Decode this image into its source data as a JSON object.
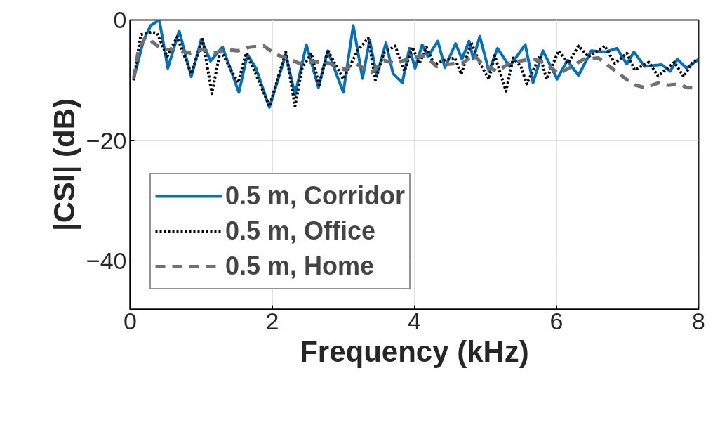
{
  "chart_data": {
    "type": "line",
    "xlabel": "Frequency (kHz)",
    "ylabel": "|CSI| (dB)",
    "xlim": [
      0,
      8
    ],
    "xticks": [
      0,
      2,
      4,
      6,
      8
    ],
    "ylim": [
      -48,
      0
    ],
    "yticks": [
      -40,
      -20,
      0
    ],
    "grid": true,
    "legend": "bottom left",
    "series": [
      {
        "name": "0.5 m, Corridor",
        "color": "#0072bd",
        "line_style": "solid",
        "x": [
          0.05,
          0.19,
          0.29,
          0.41,
          0.53,
          0.69,
          0.86,
          1.0,
          1.13,
          1.3,
          1.53,
          1.65,
          1.77,
          1.96,
          2.19,
          2.32,
          2.48,
          2.65,
          2.78,
          3.0,
          3.14,
          3.27,
          3.37,
          3.47,
          3.6,
          3.7,
          3.83,
          3.93,
          4.01,
          4.11,
          4.19,
          4.33,
          4.43,
          4.58,
          4.67,
          4.77,
          4.83,
          4.92,
          5.05,
          5.17,
          5.34,
          5.56,
          5.67,
          5.81,
          6.01,
          6.15,
          6.31,
          6.49,
          6.69,
          6.85,
          6.99,
          7.09,
          7.24,
          7.48,
          7.6,
          7.7,
          7.83,
          8.0
        ],
        "values": [
          -9.7,
          -3.3,
          -0.9,
          0,
          -8,
          -1.8,
          -9.4,
          -3.2,
          -6.8,
          -4.5,
          -12,
          -5.7,
          -8,
          -14.5,
          -5.7,
          -12.4,
          -4.1,
          -11.2,
          -5.1,
          -12,
          -0.9,
          -9.7,
          -3.3,
          -9.2,
          -3.8,
          -8.9,
          -10.4,
          -4.7,
          -8,
          -4.1,
          -6.1,
          -3.5,
          -7.9,
          -3.9,
          -6.5,
          -3.5,
          -6.5,
          -2.7,
          -8.5,
          -4.7,
          -7.7,
          -4.1,
          -10.4,
          -5.1,
          -9.8,
          -6.7,
          -9.2,
          -5.1,
          -5.3,
          -4.7,
          -7.3,
          -5.3,
          -7.7,
          -7.4,
          -8.5,
          -6.5,
          -8,
          -6.5
        ]
      },
      {
        "name": "0.5 m, Office",
        "color": "#000000",
        "line_style": "dotted",
        "x": [
          0.05,
          0.15,
          0.3,
          0.38,
          0.52,
          0.66,
          0.86,
          1.02,
          1.15,
          1.27,
          1.52,
          1.63,
          1.77,
          1.96,
          2.19,
          2.32,
          2.42,
          2.55,
          2.66,
          2.78,
          3.0,
          3.2,
          3.35,
          3.45,
          3.57,
          3.73,
          3.86,
          3.97,
          4.07,
          4.17,
          4.28,
          4.41,
          4.57,
          4.66,
          4.8,
          4.92,
          5.05,
          5.13,
          5.29,
          5.39,
          5.5,
          5.58,
          5.77,
          5.86,
          6.03,
          6.16,
          6.31,
          6.45,
          6.68,
          6.82,
          6.99,
          7.1,
          7.3,
          7.43,
          7.56,
          7.66,
          7.79,
          7.92,
          8.0
        ],
        "values": [
          -10,
          -2.4,
          -2,
          -2.2,
          -6.1,
          -2.8,
          -8.9,
          -3.2,
          -12.2,
          -5,
          -10.4,
          -5.5,
          -9,
          -14.3,
          -5.3,
          -14.3,
          -8,
          -5.5,
          -10.8,
          -5,
          -9.8,
          -5.1,
          -3,
          -10,
          -5.5,
          -4.3,
          -8.5,
          -4.5,
          -7.2,
          -4.5,
          -7.4,
          -6.7,
          -6.3,
          -9,
          -3.7,
          -7.2,
          -9.8,
          -5.9,
          -11.8,
          -6.3,
          -7.7,
          -10.6,
          -5.9,
          -9.8,
          -5.1,
          -7.2,
          -4.3,
          -6.1,
          -4.3,
          -7.2,
          -5.5,
          -8.3,
          -7,
          -9.3,
          -8,
          -7,
          -9.4,
          -6.9,
          -6.5
        ]
      },
      {
        "name": "0.5 m, Home",
        "color": "#707070",
        "line_style": "dashed",
        "x": [
          0.05,
          0.12,
          0.22,
          0.32,
          0.45,
          0.65,
          0.85,
          1.02,
          1.18,
          1.35,
          1.51,
          1.68,
          1.88,
          2.05,
          2.25,
          2.38,
          2.58,
          2.78,
          3.01,
          3.17,
          3.4,
          3.57,
          3.73,
          4.0,
          4.15,
          4.31,
          4.49,
          4.69,
          4.83,
          4.97,
          5.17,
          5.34,
          5.53,
          5.69,
          5.86,
          6.03,
          6.22,
          6.38,
          6.59,
          6.79,
          6.98,
          7.11,
          7.24,
          7.44,
          7.57,
          7.74,
          7.83,
          8.0
        ],
        "values": [
          -9.7,
          -4.7,
          -2.8,
          -3.7,
          -4.9,
          -4.9,
          -5.5,
          -4.9,
          -5.5,
          -4.9,
          -5.1,
          -4.5,
          -4.3,
          -5.7,
          -6.5,
          -7.2,
          -6.9,
          -7.1,
          -8.2,
          -7.2,
          -8.7,
          -6.7,
          -7.2,
          -6.1,
          -5.9,
          -7.7,
          -7.3,
          -7.1,
          -5.7,
          -7.5,
          -8.5,
          -7.1,
          -6.7,
          -6.5,
          -7.3,
          -8.9,
          -7.7,
          -6.5,
          -6.3,
          -8.1,
          -9.8,
          -10.8,
          -11.2,
          -10.4,
          -10.8,
          -10.6,
          -11.2,
          -11.2
        ]
      }
    ]
  }
}
